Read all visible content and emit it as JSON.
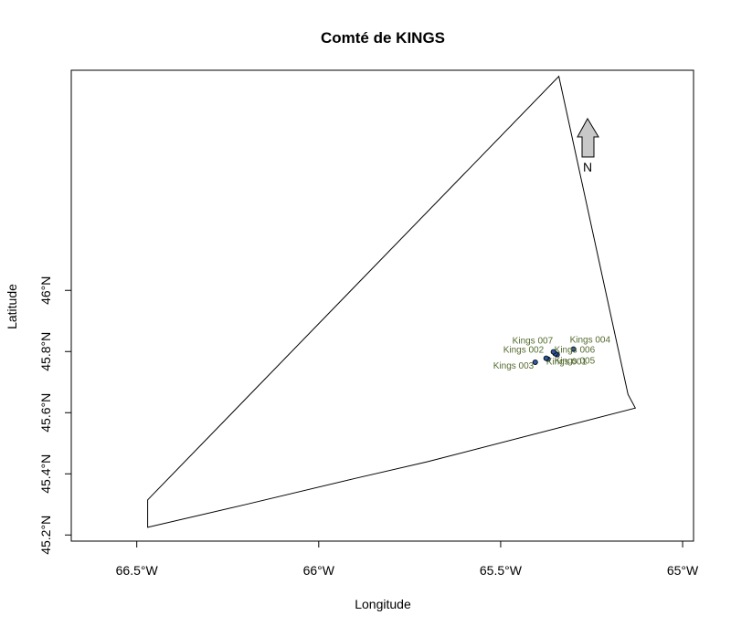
{
  "map": {
    "title": "Comté de KINGS",
    "xlabel": "Longitude",
    "ylabel": "Latitude",
    "xlim": [
      -66.68,
      -64.97
    ],
    "ylim": [
      45.18,
      46.72
    ],
    "x_ticks": [
      {
        "value": -66.5,
        "label": "66.5°W"
      },
      {
        "value": -66.0,
        "label": "66°W"
      },
      {
        "value": -65.5,
        "label": "65.5°W"
      },
      {
        "value": -65.0,
        "label": "65°W"
      }
    ],
    "y_ticks": [
      {
        "value": 45.2,
        "label": "45.2°N"
      },
      {
        "value": 45.4,
        "label": "45.4°N"
      },
      {
        "value": 45.6,
        "label": "45.6°N"
      },
      {
        "value": 45.8,
        "label": "45.8°N"
      },
      {
        "value": 46.0,
        "label": "46°N"
      }
    ],
    "boundary": [
      [
        -66.47,
        45.315
      ],
      [
        -65.34,
        46.7
      ],
      [
        -65.15,
        45.66
      ],
      [
        -65.13,
        45.615
      ],
      [
        -65.7,
        45.44
      ],
      [
        -65.9,
        45.385
      ],
      [
        -66.2,
        45.3
      ],
      [
        -66.47,
        45.225
      ]
    ],
    "sites": [
      {
        "name": "Kings 001",
        "lon": -65.37,
        "lat": 45.775,
        "label_dx": -2,
        "label_dy": 6
      },
      {
        "name": "Kings 002",
        "lon": -65.375,
        "lat": 45.778,
        "label_dx": -47,
        "label_dy": -6
      },
      {
        "name": "Kings 003",
        "lon": -65.405,
        "lat": 45.765,
        "label_dx": -46,
        "label_dy": 7
      },
      {
        "name": "Kings 004",
        "lon": -65.3,
        "lat": 45.808,
        "label_dx": -4,
        "label_dy": -7
      },
      {
        "name": "Kings 005",
        "lon": -65.345,
        "lat": 45.79,
        "label_dx": -3,
        "label_dy": 10
      },
      {
        "name": "Kings 006",
        "lon": -65.35,
        "lat": 45.793,
        "label_dx": -1,
        "label_dy": -1
      },
      {
        "name": "Kings 007",
        "lon": -65.355,
        "lat": 45.799,
        "label_dx": -45,
        "label_dy": -9
      }
    ],
    "north_arrow": {
      "label": "N"
    },
    "colors": {
      "boundary": "#000000",
      "site_fill": "#2c5aa0",
      "site_label": "#556b2f",
      "arrow_fill": "#c8c8c8"
    }
  }
}
